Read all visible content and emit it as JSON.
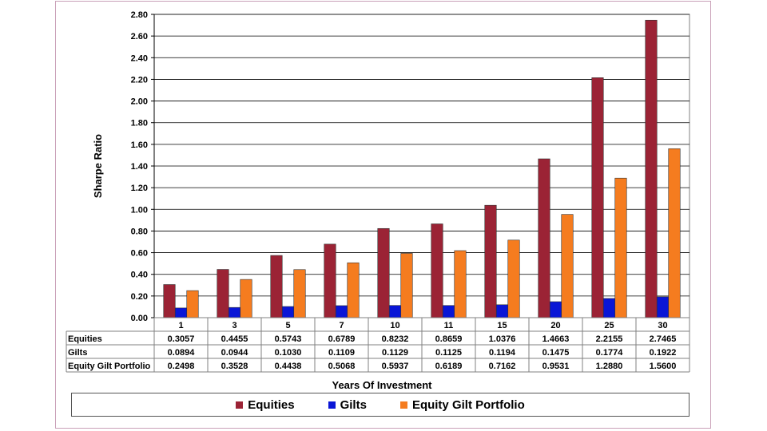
{
  "chart_data": {
    "type": "bar",
    "ylabel": "Sharpe Ratio",
    "xlabel": "Years Of Investment",
    "ylim": [
      0,
      2.8
    ],
    "ytick_step": 0.2,
    "categories": [
      "1",
      "3",
      "5",
      "7",
      "10",
      "11",
      "15",
      "20",
      "25",
      "30"
    ],
    "series": [
      {
        "name": "Equities",
        "color": "#9b2335",
        "values": [
          0.3057,
          0.4455,
          0.5743,
          0.6789,
          0.8232,
          0.8659,
          1.0376,
          1.4663,
          2.2155,
          2.7465
        ],
        "labels": [
          "0.3057",
          "0.4455",
          "0.5743",
          "0.6789",
          "0.8232",
          "0.8659",
          "1.0376",
          "1.4663",
          "2.2155",
          "2.7465"
        ]
      },
      {
        "name": "Gilts",
        "color": "#0a16d6",
        "values": [
          0.0894,
          0.0944,
          0.103,
          0.1109,
          0.1129,
          0.1125,
          0.1194,
          0.1475,
          0.1774,
          0.1922
        ],
        "labels": [
          "0.0894",
          "0.0944",
          "0.1030",
          "0.1109",
          "0.1129",
          "0.1125",
          "0.1194",
          "0.1475",
          "0.1774",
          "0.1922"
        ]
      },
      {
        "name": "Equity Gilt Portfolio",
        "color": "#f57c1f",
        "values": [
          0.2498,
          0.3528,
          0.4438,
          0.5068,
          0.5937,
          0.6189,
          0.7162,
          0.9531,
          1.288,
          1.56
        ],
        "labels": [
          "0.2498",
          "0.3528",
          "0.4438",
          "0.5068",
          "0.5937",
          "0.6189",
          "0.7162",
          "0.9531",
          "1.2880",
          "1.5600"
        ]
      }
    ],
    "grid": true,
    "legend_position": "bottom",
    "data_table": true
  }
}
